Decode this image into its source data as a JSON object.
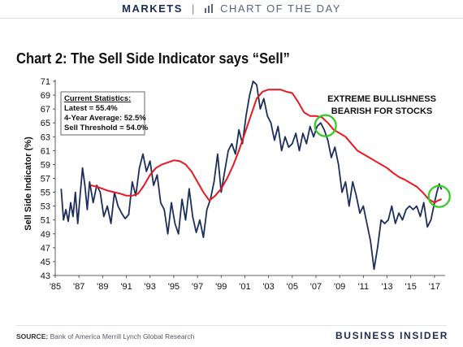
{
  "header": {
    "section": "MARKETS",
    "section_sub": "CHART OF THE DAY"
  },
  "footer": {
    "source_label": "SOURCE:",
    "source_text": "Bank of America Merrill Lynch Global Research",
    "brand": "BUSINESS INSIDER"
  },
  "colors": {
    "indicator": "#1c2e5e",
    "average": "#e8191f",
    "highlight": "#2ecc1f"
  },
  "chart_data": {
    "type": "line",
    "title": "Chart 2: The Sell Side Indicator says “Sell”",
    "ylabel": "Sell Side Indicator (%)",
    "xlabel": "",
    "xlim": [
      1985,
      2017.9
    ],
    "ylim": [
      43,
      71
    ],
    "x_ticks": [
      {
        "v": 1985,
        "label": "'85"
      },
      {
        "v": 1987,
        "label": "'87"
      },
      {
        "v": 1989,
        "label": "'89"
      },
      {
        "v": 1991,
        "label": "'91"
      },
      {
        "v": 1993,
        "label": "'93"
      },
      {
        "v": 1995,
        "label": "'95"
      },
      {
        "v": 1997,
        "label": "'97"
      },
      {
        "v": 1999,
        "label": "'99"
      },
      {
        "v": 2001,
        "label": "'01"
      },
      {
        "v": 2003,
        "label": "'03"
      },
      {
        "v": 2005,
        "label": "'05"
      },
      {
        "v": 2007,
        "label": "'07"
      },
      {
        "v": 2009,
        "label": "'09"
      },
      {
        "v": 2011,
        "label": "'11"
      },
      {
        "v": 2013,
        "label": "'13"
      },
      {
        "v": 2015,
        "label": "'15"
      },
      {
        "v": 2017,
        "label": "'17"
      }
    ],
    "y_ticks": [
      43,
      45,
      47,
      49,
      51,
      53,
      55,
      57,
      59,
      61,
      63,
      65,
      67,
      69,
      71
    ],
    "stats_box": {
      "heading": "Current Statistics:",
      "lines": [
        "Latest = 55.4%",
        "4-Year Average: 52.5%",
        "Sell Threshold = 54.0%"
      ]
    },
    "annotation": [
      "EXTREME BULLISHNESS",
      "BEARISH FOR STOCKS"
    ],
    "highlight_circles": [
      {
        "x": 2007.8,
        "y": 64.6
      },
      {
        "x": 2017.4,
        "y": 54.4
      }
    ],
    "series": [
      {
        "id": "indicator",
        "x": [
          1985.5,
          1985.7,
          1985.9,
          1986.1,
          1986.3,
          1986.5,
          1986.7,
          1986.9,
          1987.1,
          1987.3,
          1987.5,
          1987.7,
          1987.9,
          1988.2,
          1988.5,
          1988.8,
          1989.1,
          1989.4,
          1989.7,
          1990.0,
          1990.3,
          1990.6,
          1990.9,
          1991.2,
          1991.5,
          1991.8,
          1992.1,
          1992.4,
          1992.7,
          1993.0,
          1993.3,
          1993.6,
          1993.9,
          1994.2,
          1994.5,
          1994.8,
          1995.1,
          1995.4,
          1995.7,
          1996.0,
          1996.3,
          1996.6,
          1996.9,
          1997.2,
          1997.5,
          1997.8,
          1998.1,
          1998.4,
          1998.7,
          1999.0,
          1999.3,
          1999.6,
          1999.9,
          2000.2,
          2000.5,
          2000.8,
          2001.1,
          2001.4,
          2001.7,
          2002.0,
          2002.3,
          2002.6,
          2002.9,
          2003.2,
          2003.5,
          2003.8,
          2004.1,
          2004.4,
          2004.7,
          2005.0,
          2005.3,
          2005.6,
          2005.9,
          2006.2,
          2006.5,
          2006.8,
          2007.1,
          2007.4,
          2007.7,
          2008.0,
          2008.3,
          2008.6,
          2008.9,
          2009.2,
          2009.5,
          2009.8,
          2010.1,
          2010.4,
          2010.7,
          2011.0,
          2011.3,
          2011.6,
          2011.9,
          2012.2,
          2012.5,
          2012.8,
          2013.1,
          2013.4,
          2013.7,
          2014.0,
          2014.3,
          2014.6,
          2014.9,
          2015.2,
          2015.5,
          2015.8,
          2016.1,
          2016.4,
          2016.7,
          2017.0,
          2017.2,
          2017.4,
          2017.6
        ],
        "y": [
          55.5,
          51.0,
          52.5,
          50.8,
          53.5,
          51.5,
          55.0,
          50.5,
          54.5,
          58.5,
          56.0,
          52.5,
          56.5,
          53.5,
          56.0,
          55.0,
          51.5,
          53.0,
          50.5,
          55.0,
          53.0,
          52.0,
          51.2,
          51.8,
          56.5,
          54.5,
          58.5,
          60.5,
          58.0,
          59.5,
          56.0,
          57.5,
          53.5,
          52.5,
          49.0,
          53.5,
          50.5,
          49.0,
          54.0,
          51.0,
          55.5,
          51.5,
          49.2,
          51.0,
          48.5,
          52.5,
          54.0,
          56.5,
          60.5,
          55.0,
          58.0,
          61.0,
          62.0,
          60.5,
          64.0,
          62.0,
          66.0,
          69.0,
          71.0,
          70.5,
          67.0,
          68.5,
          66.0,
          65.0,
          62.5,
          64.5,
          61.0,
          63.0,
          61.5,
          62.0,
          63.5,
          61.0,
          63.5,
          62.0,
          64.5,
          63.0,
          64.5,
          65.0,
          64.0,
          62.5,
          60.0,
          61.5,
          59.0,
          55.0,
          56.5,
          53.0,
          56.5,
          54.5,
          52.0,
          53.0,
          50.5,
          48.0,
          43.9,
          47.0,
          51.0,
          50.5,
          51.0,
          53.0,
          50.5,
          52.0,
          51.0,
          52.5,
          53.0,
          52.5,
          53.0,
          51.5,
          53.5,
          50.0,
          51.0,
          53.5,
          55.0,
          56.2,
          55.4
        ]
      },
      {
        "id": "average",
        "x": [
          1988.0,
          1988.5,
          1989.0,
          1989.5,
          1990.0,
          1990.5,
          1991.0,
          1991.5,
          1992.0,
          1992.5,
          1993.0,
          1993.5,
          1994.0,
          1994.5,
          1995.0,
          1995.5,
          1996.0,
          1996.5,
          1997.0,
          1997.5,
          1998.0,
          1998.5,
          1999.0,
          1999.5,
          2000.0,
          2000.5,
          2001.0,
          2001.5,
          2002.0,
          2002.5,
          2003.0,
          2003.5,
          2004.0,
          2004.5,
          2005.0,
          2005.5,
          2006.0,
          2006.5,
          2007.0,
          2007.5,
          2008.0,
          2008.5,
          2009.0,
          2009.5,
          2010.0,
          2010.5,
          2011.0,
          2011.5,
          2012.0,
          2012.5,
          2013.0,
          2013.5,
          2014.0,
          2014.5,
          2015.0,
          2015.5,
          2016.0,
          2016.5,
          2017.0,
          2017.3,
          2017.6
        ],
        "y": [
          56.0,
          55.8,
          55.5,
          55.2,
          55.0,
          54.8,
          54.5,
          54.5,
          54.8,
          56.0,
          57.5,
          58.5,
          59.0,
          59.3,
          59.6,
          59.5,
          59.0,
          58.0,
          56.5,
          55.0,
          53.8,
          54.5,
          55.5,
          57.0,
          58.8,
          61.0,
          63.5,
          66.0,
          68.5,
          69.5,
          69.8,
          69.8,
          69.8,
          69.5,
          69.3,
          68.0,
          66.5,
          66.0,
          66.0,
          65.8,
          65.0,
          64.0,
          63.5,
          63.0,
          62.0,
          61.0,
          60.5,
          60.0,
          59.5,
          59.0,
          58.5,
          57.8,
          57.2,
          56.8,
          56.3,
          55.8,
          55.0,
          54.0,
          53.5,
          53.8,
          54.0
        ]
      }
    ]
  }
}
